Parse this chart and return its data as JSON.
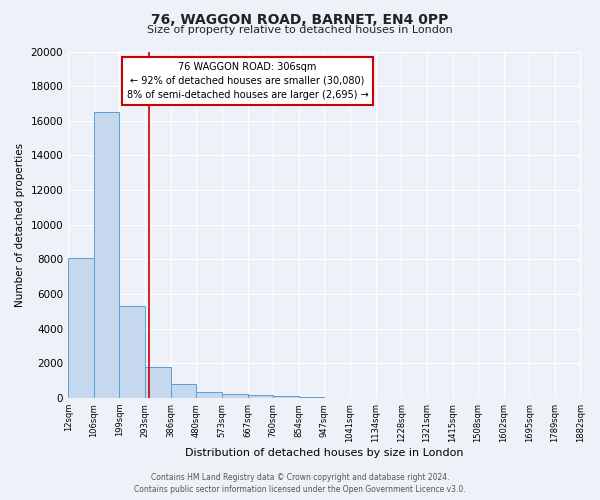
{
  "title": "76, WAGGON ROAD, BARNET, EN4 0PP",
  "subtitle": "Size of property relative to detached houses in London",
  "xlabel": "Distribution of detached houses by size in London",
  "ylabel": "Number of detached properties",
  "bin_edges": [
    12,
    106,
    199,
    293,
    386,
    480,
    573,
    667,
    760,
    854,
    947,
    1041,
    1134,
    1228,
    1321,
    1415,
    1508,
    1602,
    1695,
    1789,
    1882
  ],
  "bar_heights": [
    8100,
    16500,
    5300,
    1800,
    800,
    350,
    200,
    150,
    100,
    50,
    0,
    0,
    0,
    0,
    0,
    0,
    0,
    0,
    0,
    0
  ],
  "property_size": 306,
  "property_line_color": "#cc0000",
  "bar_facecolor": "#c5d8ee",
  "bar_edgecolor": "#5a9fd4",
  "annotation_title": "76 WAGGON ROAD: 306sqm",
  "annotation_line1": "← 92% of detached houses are smaller (30,080)",
  "annotation_line2": "8% of semi-detached houses are larger (2,695) →",
  "annotation_box_edgecolor": "#cc0000",
  "ylim": [
    0,
    20000
  ],
  "yticks": [
    0,
    2000,
    4000,
    6000,
    8000,
    10000,
    12000,
    14000,
    16000,
    18000,
    20000
  ],
  "tick_labels": [
    "12sqm",
    "106sqm",
    "199sqm",
    "293sqm",
    "386sqm",
    "480sqm",
    "573sqm",
    "667sqm",
    "760sqm",
    "854sqm",
    "947sqm",
    "1041sqm",
    "1134sqm",
    "1228sqm",
    "1321sqm",
    "1415sqm",
    "1508sqm",
    "1602sqm",
    "1695sqm",
    "1789sqm",
    "1882sqm"
  ],
  "footer_line1": "Contains HM Land Registry data © Crown copyright and database right 2024.",
  "footer_line2": "Contains public sector information licensed under the Open Government Licence v3.0.",
  "bg_color": "#eef2f8",
  "plot_bg_color": "#eef2f8",
  "grid_color": "#ffffff",
  "title_fontsize": 10,
  "subtitle_fontsize": 8,
  "xlabel_fontsize": 8,
  "ylabel_fontsize": 7.5,
  "ytick_fontsize": 7.5,
  "xtick_fontsize": 6
}
